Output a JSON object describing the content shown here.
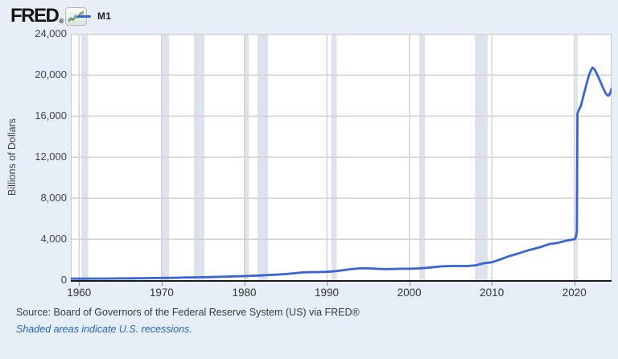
{
  "header": {
    "logo_text": "FRED",
    "logo_registered": "®",
    "legend": {
      "series_label": "M1"
    }
  },
  "y_axis_title": "Billions of Dollars",
  "footer": {
    "source": "Source: Board of Governors of the Federal Reserve System (US) via FRED®",
    "note": "Shaded areas indicate U.S. recessions."
  },
  "colors": {
    "background": "#e6eef8",
    "plot_background": "#ffffff",
    "line": "#3a64cf",
    "grid": "#d3d3d3",
    "plot_border": "#c9c9c9",
    "recession_band": "#dce3ec",
    "axis": "#1a1a1a",
    "tick_label": "#454545",
    "link": "#2663c5"
  },
  "chart_data": {
    "type": "line",
    "title": "M1",
    "xlabel": "",
    "ylabel": "Billions of Dollars",
    "x_range": [
      1959,
      2024.5
    ],
    "y_range": [
      0,
      24000
    ],
    "x_ticks": [
      1960,
      1970,
      1980,
      1990,
      2000,
      2010,
      2020
    ],
    "y_ticks": [
      0,
      4000,
      8000,
      12000,
      16000,
      20000,
      24000
    ],
    "y_tick_labels": [
      "0",
      "4,000",
      "8,000",
      "12,000",
      "16,000",
      "20,000",
      "24,000"
    ],
    "grid": true,
    "legend_position": "top-left",
    "recessions": [
      [
        1960.3,
        1961.1
      ],
      [
        1969.92,
        1970.9
      ],
      [
        1973.9,
        1975.2
      ],
      [
        1980.05,
        1980.55
      ],
      [
        1981.6,
        1982.9
      ],
      [
        1990.55,
        1991.2
      ],
      [
        2001.2,
        2001.9
      ],
      [
        2007.95,
        2009.5
      ],
      [
        2020.12,
        2020.37
      ]
    ],
    "series": [
      {
        "name": "M1",
        "color": "#3a64cf",
        "points": [
          [
            1959,
            139
          ],
          [
            1960,
            140
          ],
          [
            1961,
            143
          ],
          [
            1962,
            146
          ],
          [
            1963,
            151
          ],
          [
            1964,
            156
          ],
          [
            1965,
            163
          ],
          [
            1966,
            171
          ],
          [
            1967,
            179
          ],
          [
            1968,
            190
          ],
          [
            1969,
            201
          ],
          [
            1970,
            209
          ],
          [
            1971,
            223
          ],
          [
            1972,
            239
          ],
          [
            1973,
            257
          ],
          [
            1974,
            269
          ],
          [
            1975,
            281
          ],
          [
            1976,
            297
          ],
          [
            1977,
            320
          ],
          [
            1978,
            346
          ],
          [
            1979,
            372
          ],
          [
            1980,
            396
          ],
          [
            1981,
            425
          ],
          [
            1982,
            453
          ],
          [
            1983,
            503
          ],
          [
            1984,
            538
          ],
          [
            1985,
            587
          ],
          [
            1986,
            666
          ],
          [
            1987,
            744
          ],
          [
            1988,
            775
          ],
          [
            1989,
            782
          ],
          [
            1990,
            810
          ],
          [
            1991,
            859
          ],
          [
            1992,
            965
          ],
          [
            1993,
            1078
          ],
          [
            1994,
            1145
          ],
          [
            1995,
            1143
          ],
          [
            1996,
            1106
          ],
          [
            1997,
            1070
          ],
          [
            1998,
            1080
          ],
          [
            1999,
            1102
          ],
          [
            2000,
            1104
          ],
          [
            2001,
            1136
          ],
          [
            2002,
            1196
          ],
          [
            2003,
            1274
          ],
          [
            2004,
            1344
          ],
          [
            2005,
            1371
          ],
          [
            2006,
            1374
          ],
          [
            2007,
            1369
          ],
          [
            2008,
            1435
          ],
          [
            2009,
            1638
          ],
          [
            2010,
            1742
          ],
          [
            2011,
            2010
          ],
          [
            2012,
            2311
          ],
          [
            2013,
            2545
          ],
          [
            2014,
            2810
          ],
          [
            2015,
            3027
          ],
          [
            2016,
            3247
          ],
          [
            2017,
            3519
          ],
          [
            2018,
            3631
          ],
          [
            2019,
            3847
          ],
          [
            2020.08,
            4003
          ],
          [
            2020.2,
            4261
          ],
          [
            2020.3,
            4779
          ],
          [
            2020.37,
            16244
          ],
          [
            2020.55,
            16600
          ],
          [
            2020.8,
            17000
          ],
          [
            2021,
            17669
          ],
          [
            2021.25,
            18450
          ],
          [
            2021.5,
            19200
          ],
          [
            2021.75,
            19950
          ],
          [
            2022,
            20450
          ],
          [
            2022.2,
            20700
          ],
          [
            2022.4,
            20580
          ],
          [
            2022.6,
            20280
          ],
          [
            2022.8,
            19950
          ],
          [
            2023,
            19620
          ],
          [
            2023.2,
            19220
          ],
          [
            2023.4,
            18860
          ],
          [
            2023.6,
            18500
          ],
          [
            2023.8,
            18200
          ],
          [
            2024,
            18000
          ],
          [
            2024.15,
            17990
          ],
          [
            2024.3,
            18150
          ],
          [
            2024.45,
            18500
          ],
          [
            2024.5,
            18650
          ]
        ]
      }
    ]
  }
}
